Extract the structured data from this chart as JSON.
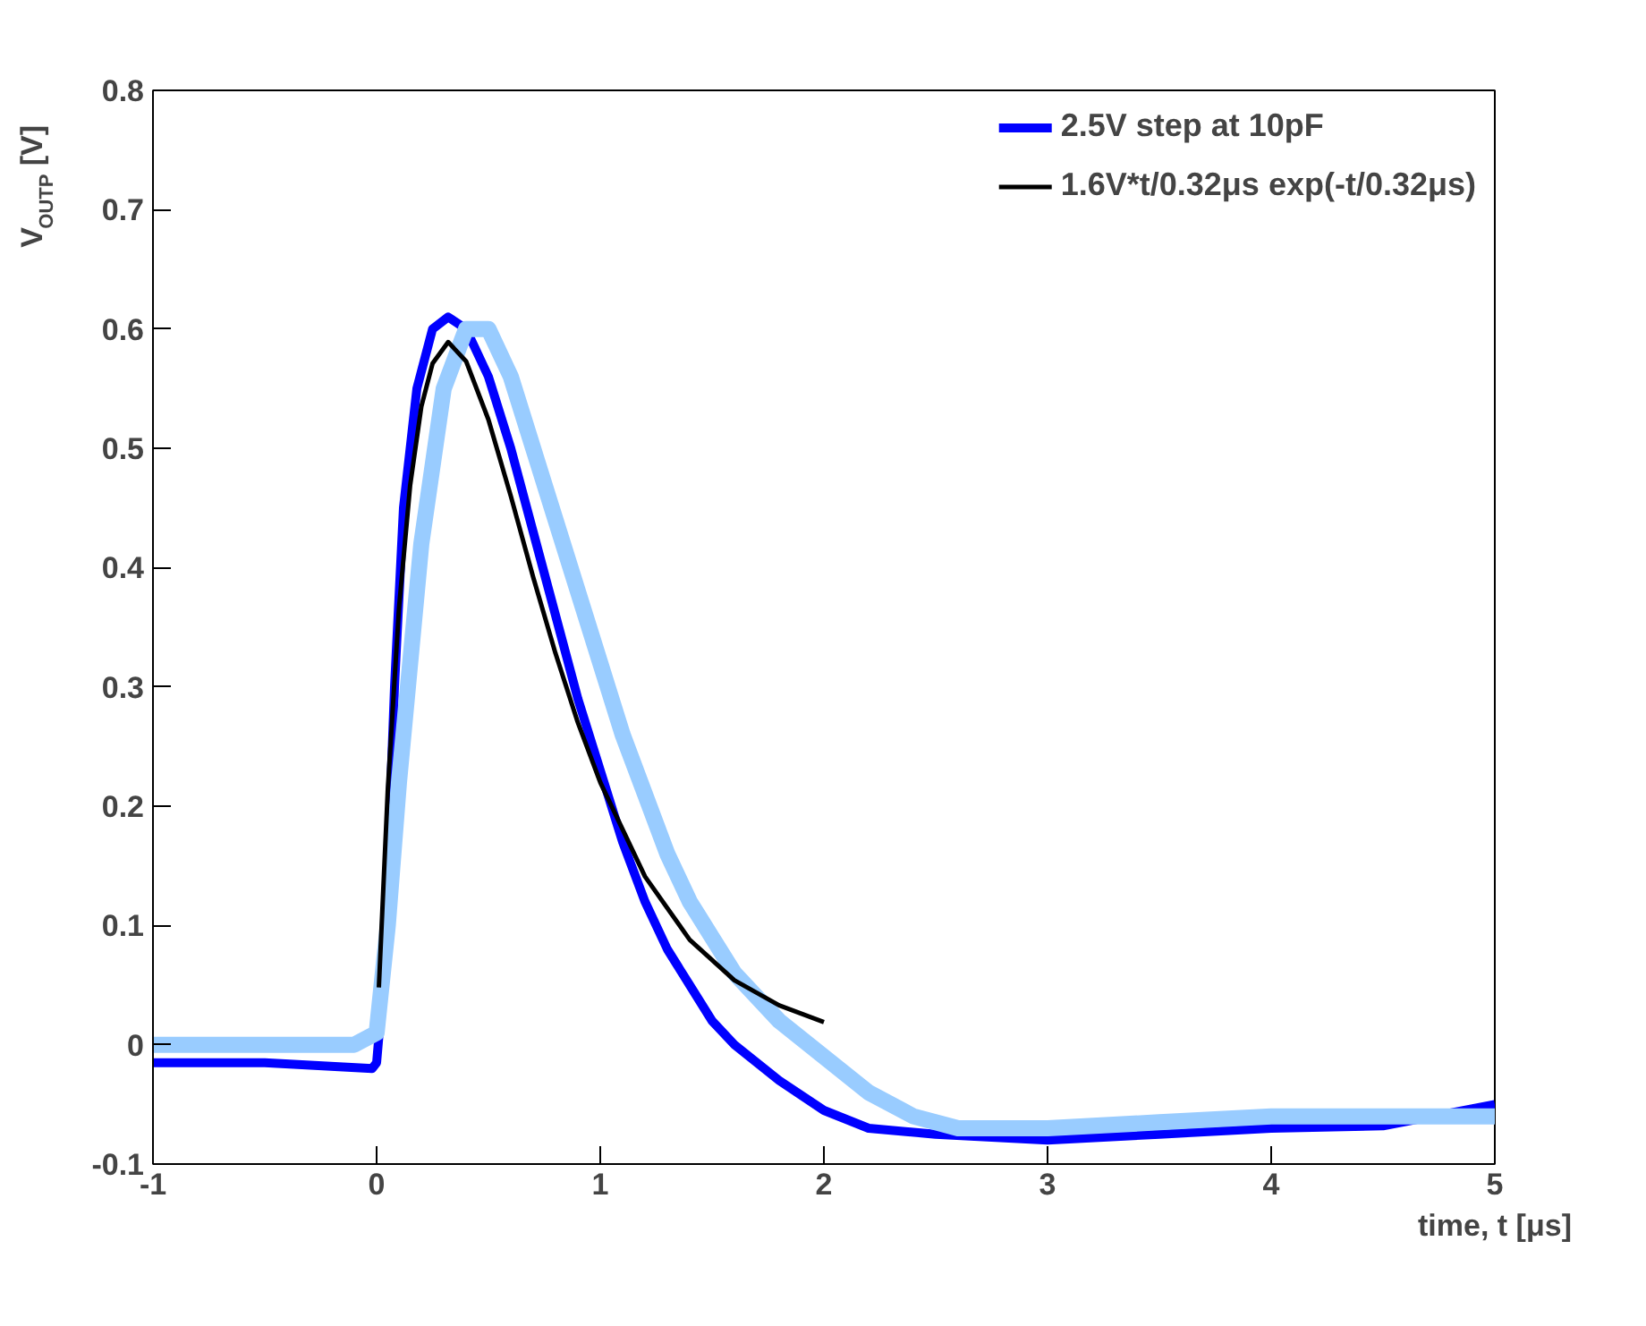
{
  "chart_data": {
    "type": "line",
    "xlabel": "time, t [μs]",
    "ylabel": "V$_{OUTP}$ [V]",
    "xlim": [
      -1,
      5
    ],
    "xticks": [
      -1,
      0,
      1,
      2,
      3,
      4,
      5
    ],
    "ylim": [
      -0.1,
      0.8
    ],
    "yticks": [
      -0.1,
      0,
      0.1,
      0.2,
      0.3,
      0.4,
      0.5,
      0.6,
      0.7,
      0.8
    ],
    "grid": false,
    "legend": "top right",
    "series": [
      {
        "name": "2.5V step at 10pF",
        "color": "#0000ff",
        "x": [
          -1,
          -0.5,
          -0.02,
          0.0,
          0.03,
          0.08,
          0.12,
          0.18,
          0.25,
          0.32,
          0.4,
          0.5,
          0.6,
          0.7,
          0.8,
          0.9,
          1.0,
          1.1,
          1.2,
          1.3,
          1.4,
          1.5,
          1.6,
          1.8,
          2.0,
          2.2,
          2.5,
          3,
          3.5,
          4,
          4.5,
          5
        ],
        "values": [
          -0.015,
          -0.015,
          -0.02,
          -0.015,
          0.05,
          0.3,
          0.45,
          0.55,
          0.6,
          0.61,
          0.6,
          0.56,
          0.5,
          0.43,
          0.36,
          0.29,
          0.23,
          0.17,
          0.12,
          0.08,
          0.05,
          0.02,
          0.0,
          -0.03,
          -0.055,
          -0.07,
          -0.075,
          -0.08,
          -0.075,
          -0.07,
          -0.068,
          -0.05
        ]
      },
      {
        "color": "#99ccff",
        "x": [
          -1,
          -0.5,
          -0.1,
          0.0,
          0.05,
          0.1,
          0.2,
          0.3,
          0.4,
          0.5,
          0.6,
          0.7,
          0.8,
          0.9,
          1.0,
          1.1,
          1.2,
          1.3,
          1.4,
          1.5,
          1.6,
          1.7,
          1.8,
          2.0,
          2.2,
          2.4,
          2.6,
          3,
          3.5,
          4,
          4.5,
          5
        ],
        "values": [
          0.0,
          0.0,
          0.0,
          0.01,
          0.1,
          0.22,
          0.42,
          0.55,
          0.6,
          0.6,
          0.56,
          0.5,
          0.44,
          0.38,
          0.32,
          0.26,
          0.21,
          0.16,
          0.12,
          0.09,
          0.06,
          0.04,
          0.02,
          -0.01,
          -0.04,
          -0.06,
          -0.07,
          -0.07,
          -0.065,
          -0.06,
          -0.06,
          -0.06
        ]
      },
      {
        "name": "1.6V*t/0.32μs exp(-t/0.32μs)",
        "color": "#000000",
        "x": [
          0.01,
          0.05,
          0.1,
          0.15,
          0.2,
          0.25,
          0.32,
          0.4,
          0.5,
          0.6,
          0.7,
          0.8,
          0.9,
          1.0,
          1.2,
          1.4,
          1.6,
          1.8,
          2.0
        ],
        "values": [
          0.048,
          0.214,
          0.366,
          0.469,
          0.535,
          0.571,
          0.589,
          0.573,
          0.524,
          0.46,
          0.392,
          0.328,
          0.27,
          0.22,
          0.141,
          0.088,
          0.054,
          0.033,
          0.019
        ]
      }
    ]
  }
}
